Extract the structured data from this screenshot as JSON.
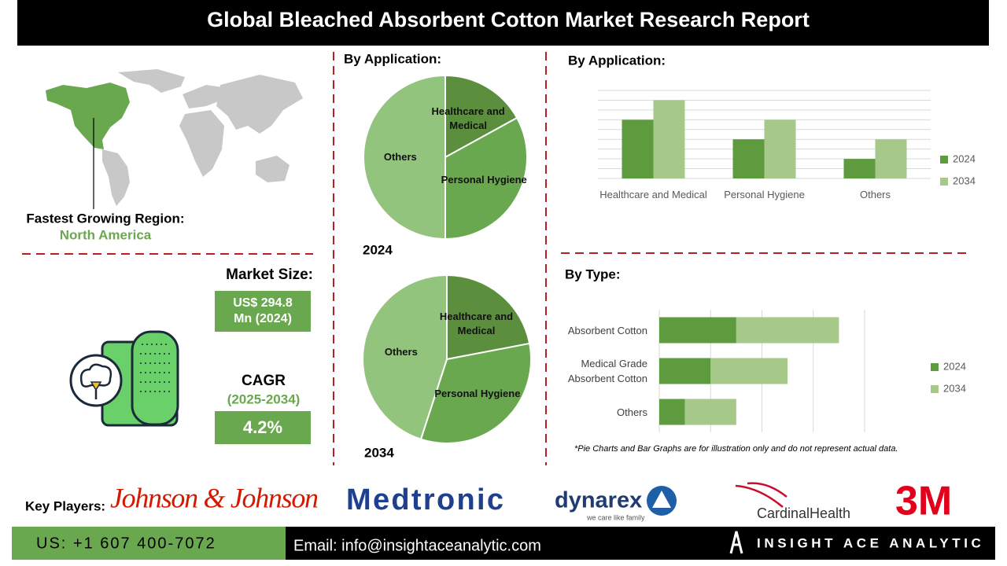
{
  "header": {
    "title": "Global Bleached Absorbent Cotton Market Research Report"
  },
  "region": {
    "label": "Fastest Growing Region:",
    "value": "North America"
  },
  "market_size": {
    "label": "Market Size:",
    "value": "US$ 294.8 Mn (2024)"
  },
  "cagr": {
    "label": "CAGR",
    "period": "(2025-2034)",
    "value": "4.2%"
  },
  "chart_data": [
    {
      "type": "pie",
      "title": "By Application:",
      "label": "2024",
      "categories": [
        "Healthcare and Medical",
        "Personal Hygiene",
        "Others"
      ],
      "values": [
        17,
        33,
        50
      ],
      "colors": [
        "#5b8f3d",
        "#6aa84f",
        "#93c47d"
      ]
    },
    {
      "type": "pie",
      "label": "2034",
      "categories": [
        "Healthcare and Medical",
        "Personal Hygiene",
        "Others"
      ],
      "values": [
        22,
        33,
        45
      ],
      "colors": [
        "#5b8f3d",
        "#6aa84f",
        "#93c47d"
      ]
    },
    {
      "type": "bar",
      "title": "By Application:",
      "categories": [
        "Healthcare and Medical",
        "Personal Hygiene",
        "Others"
      ],
      "series": [
        {
          "name": "2024",
          "color": "#5e9a3e",
          "values": [
            6,
            4,
            2
          ]
        },
        {
          "name": "2034",
          "color": "#a6c98a",
          "values": [
            8,
            6,
            4
          ]
        }
      ],
      "ylim": [
        0,
        9
      ],
      "yticks": [
        0,
        1,
        2,
        3,
        4,
        5,
        6,
        7,
        8,
        9
      ],
      "grid": true
    },
    {
      "type": "bar",
      "horizontal": true,
      "stacked": true,
      "title": "By Type:",
      "categories": [
        "Absorbent Cotton",
        "Medical Grade Absorbent Cotton",
        "Others"
      ],
      "series": [
        {
          "name": "2024",
          "color": "#5e9a3e",
          "values": [
            1.5,
            1,
            0.5
          ]
        },
        {
          "name": "2034",
          "color": "#a6c98a",
          "values": [
            2,
            1.5,
            1
          ]
        }
      ],
      "xlim": [
        0,
        4
      ],
      "xticks": [
        0,
        1,
        2,
        3,
        4
      ],
      "grid": true,
      "note": "*Pie Charts and Bar Graphs are for illustration only and do not represent actual data."
    }
  ],
  "key_players": {
    "label": "Key Players:",
    "companies": [
      {
        "name": "Johnson & Johnson"
      },
      {
        "name": "Medtronic"
      },
      {
        "name": "dynarex",
        "tagline": "we care like family"
      },
      {
        "name": "CardinalHealth"
      },
      {
        "name": "3M"
      }
    ]
  },
  "footer": {
    "phone": "US: +1 607 400-7072",
    "email": "Email: info@insightaceanalytic.com",
    "brand": "INSIGHT ACE ANALYTIC"
  }
}
